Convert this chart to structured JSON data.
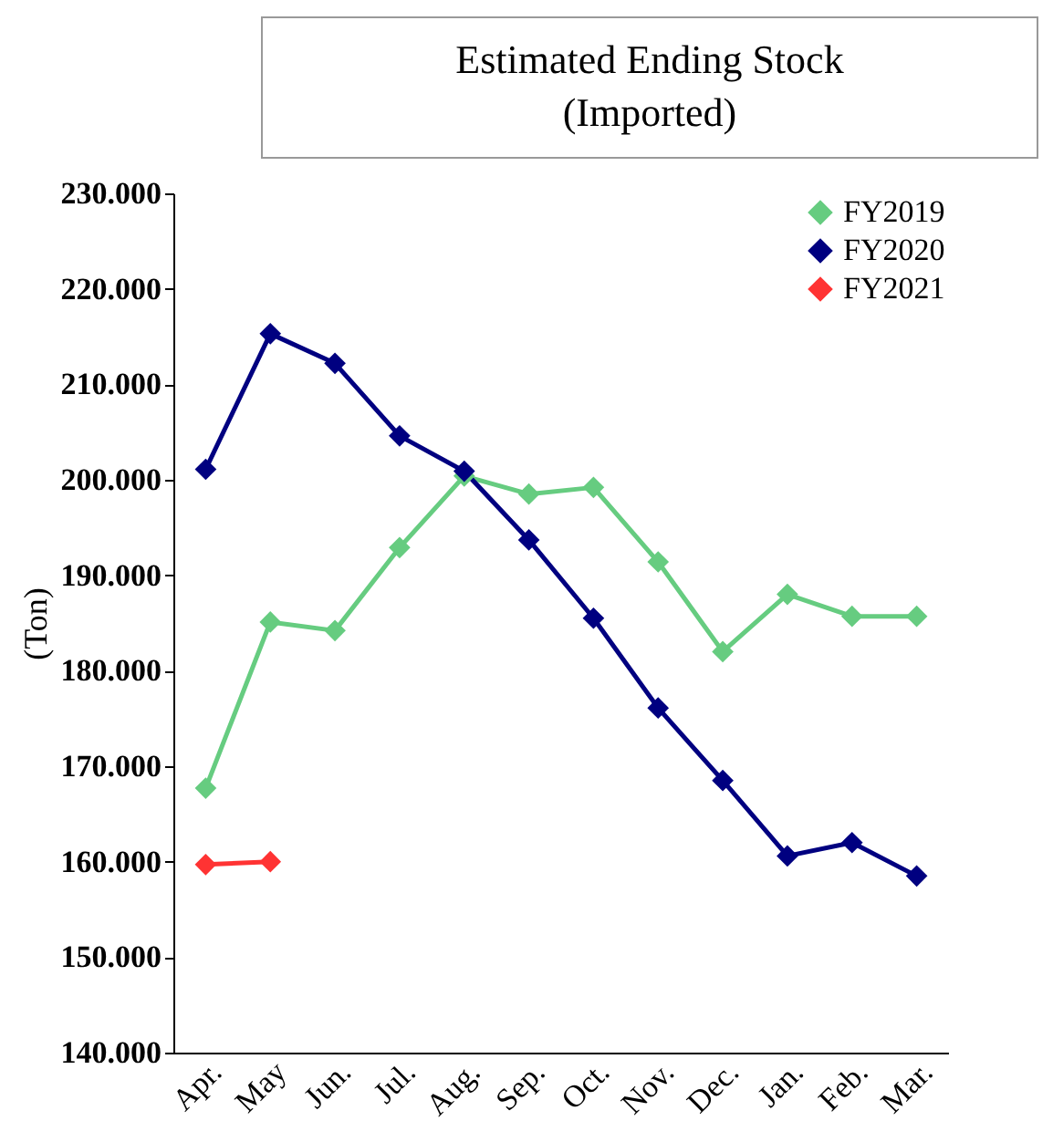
{
  "chart_data": {
    "type": "line",
    "title": "Estimated Ending Stock\n(Imported)",
    "ylabel": "(Ton)",
    "categories": [
      "Apr.",
      "May",
      "Jun.",
      "Jul.",
      "Aug.",
      "Sep.",
      "Oct.",
      "Nov.",
      "Dec.",
      "Jan.",
      "Feb.",
      "Mar."
    ],
    "series": [
      {
        "name": "FY2019",
        "color": "#66cc80",
        "values": [
          167700,
          185100,
          184200,
          192900,
          200400,
          198500,
          199200,
          191400,
          182000,
          188000,
          185700,
          185700
        ]
      },
      {
        "name": "FY2020",
        "color": "#000080",
        "values": [
          201100,
          215300,
          212200,
          204600,
          200900,
          193700,
          185500,
          176100,
          168500,
          160600,
          162000,
          158500
        ]
      },
      {
        "name": "FY2021",
        "color": "#ff3333",
        "values": [
          159700,
          160000,
          null,
          null,
          null,
          null,
          null,
          null,
          null,
          null,
          null,
          null
        ]
      }
    ],
    "ylim": [
      140000,
      230000
    ],
    "yticks": [
      {
        "value": 140000,
        "label": "140.000"
      },
      {
        "value": 150000,
        "label": "150.000"
      },
      {
        "value": 160000,
        "label": "160.000"
      },
      {
        "value": 170000,
        "label": "170.000"
      },
      {
        "value": 180000,
        "label": "180.000"
      },
      {
        "value": 190000,
        "label": "190.000"
      },
      {
        "value": 200000,
        "label": "200.000"
      },
      {
        "value": 210000,
        "label": "210.000"
      },
      {
        "value": 220000,
        "label": "220.000"
      },
      {
        "value": 230000,
        "label": "230.000"
      }
    ],
    "legend": "top right",
    "marker": "diamond",
    "line_style": "solid",
    "grid": false
  }
}
